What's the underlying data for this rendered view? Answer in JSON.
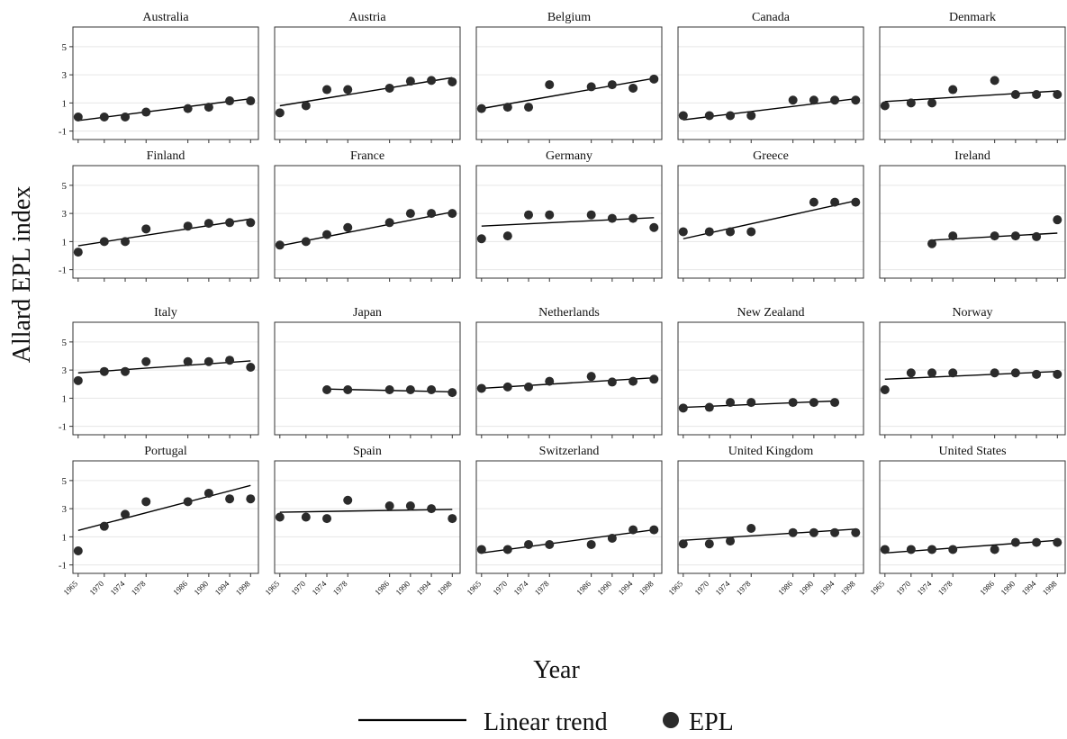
{
  "chart_data": {
    "type": "scatter",
    "xlabel": "Year",
    "ylabel": "Allard EPL index",
    "x_ticks": [
      1965,
      1970,
      1974,
      1978,
      1986,
      1990,
      1994,
      1998
    ],
    "y_ticks": [
      -1,
      1,
      3,
      5
    ],
    "xlim": [
      1964,
      1999.5
    ],
    "ylim": [
      -1.6,
      6.4
    ],
    "grid": true,
    "legend": {
      "position": "bottom",
      "entries": [
        "Linear trend",
        "EPL"
      ]
    },
    "colors": {
      "points": "#2b2b2b",
      "line": "#000000",
      "grid": "#e6e6e6",
      "frame": "#333333"
    },
    "panels": [
      {
        "name": "Australia",
        "years": [
          1965,
          1970,
          1974,
          1978,
          1986,
          1990,
          1994,
          1998
        ],
        "values": [
          0.0,
          0.0,
          0.0,
          0.35,
          0.6,
          0.7,
          1.15,
          1.15
        ],
        "trend": [
          -0.25,
          1.3
        ]
      },
      {
        "name": "Austria",
        "years": [
          1965,
          1970,
          1974,
          1978,
          1986,
          1990,
          1994,
          1998
        ],
        "values": [
          0.3,
          0.8,
          1.95,
          1.95,
          2.05,
          2.55,
          2.6,
          2.5
        ],
        "trend": [
          0.8,
          2.8
        ]
      },
      {
        "name": "Belgium",
        "years": [
          1965,
          1970,
          1974,
          1978,
          1986,
          1990,
          1994,
          1998
        ],
        "values": [
          0.6,
          0.7,
          0.7,
          2.3,
          2.15,
          2.3,
          2.05,
          2.7
        ],
        "trend": [
          0.6,
          2.75
        ]
      },
      {
        "name": "Canada",
        "years": [
          1965,
          1970,
          1974,
          1978,
          1986,
          1990,
          1994,
          1998
        ],
        "values": [
          0.1,
          0.1,
          0.1,
          0.1,
          1.2,
          1.2,
          1.2,
          1.2
        ],
        "trend": [
          -0.2,
          1.3
        ]
      },
      {
        "name": "Denmark",
        "years": [
          1965,
          1970,
          1974,
          1978,
          1986,
          1990,
          1994,
          1998
        ],
        "values": [
          0.8,
          1.0,
          1.0,
          1.95,
          2.6,
          1.6,
          1.6,
          1.6
        ],
        "trend": [
          1.1,
          1.85
        ]
      },
      {
        "name": "Finland",
        "years": [
          1965,
          1970,
          1974,
          1978,
          1986,
          1990,
          1994,
          1998
        ],
        "values": [
          0.25,
          1.0,
          1.0,
          1.9,
          2.1,
          2.3,
          2.35,
          2.35
        ],
        "trend": [
          0.7,
          2.6
        ]
      },
      {
        "name": "France",
        "years": [
          1965,
          1970,
          1974,
          1978,
          1986,
          1990,
          1994,
          1998
        ],
        "values": [
          0.75,
          1.0,
          1.5,
          2.0,
          2.35,
          3.0,
          3.0,
          3.0
        ],
        "trend": [
          0.7,
          3.1
        ]
      },
      {
        "name": "Germany",
        "years": [
          1965,
          1970,
          1974,
          1978,
          1986,
          1990,
          1994,
          1998
        ],
        "values": [
          1.2,
          1.4,
          2.9,
          2.9,
          2.9,
          2.65,
          2.65,
          2.0
        ],
        "trend": [
          2.1,
          2.7
        ]
      },
      {
        "name": "Greece",
        "years": [
          1965,
          1970,
          1974,
          1978,
          1990,
          1994,
          1998
        ],
        "values": [
          1.7,
          1.7,
          1.7,
          1.7,
          3.8,
          3.8,
          3.8
        ],
        "trend": [
          1.2,
          3.9
        ]
      },
      {
        "name": "Ireland",
        "years": [
          1974,
          1978,
          1986,
          1990,
          1994,
          1998
        ],
        "values": [
          0.85,
          1.4,
          1.4,
          1.4,
          1.35,
          2.55
        ],
        "trend": [
          1.1,
          1.6
        ]
      },
      {
        "name": "Italy",
        "years": [
          1965,
          1970,
          1974,
          1978,
          1986,
          1990,
          1994,
          1998
        ],
        "values": [
          2.25,
          2.9,
          2.9,
          3.6,
          3.6,
          3.6,
          3.7,
          3.2
        ],
        "trend": [
          2.8,
          3.65
        ]
      },
      {
        "name": "Japan",
        "years": [
          1974,
          1978,
          1986,
          1990,
          1994,
          1998
        ],
        "values": [
          1.6,
          1.6,
          1.6,
          1.6,
          1.6,
          1.4
        ],
        "trend": [
          1.65,
          1.45
        ]
      },
      {
        "name": "Netherlands",
        "years": [
          1965,
          1970,
          1974,
          1978,
          1986,
          1990,
          1994,
          1998
        ],
        "values": [
          1.7,
          1.8,
          1.8,
          2.2,
          2.55,
          2.15,
          2.2,
          2.35
        ],
        "trend": [
          1.7,
          2.45
        ]
      },
      {
        "name": "New Zealand",
        "years": [
          1965,
          1970,
          1974,
          1978,
          1986,
          1990,
          1994
        ],
        "values": [
          0.3,
          0.35,
          0.7,
          0.7,
          0.7,
          0.7,
          0.7
        ],
        "trend": [
          0.35,
          0.8
        ]
      },
      {
        "name": "Norway",
        "years": [
          1965,
          1970,
          1974,
          1978,
          1986,
          1990,
          1994,
          1998
        ],
        "values": [
          1.6,
          2.8,
          2.8,
          2.8,
          2.8,
          2.8,
          2.7,
          2.7
        ],
        "trend": [
          2.35,
          2.9
        ]
      },
      {
        "name": "Portugal",
        "years": [
          1965,
          1970,
          1974,
          1978,
          1986,
          1990,
          1994,
          1998
        ],
        "values": [
          0.0,
          1.75,
          2.6,
          3.5,
          3.5,
          4.1,
          3.7,
          3.7
        ],
        "trend": [
          1.45,
          4.65
        ]
      },
      {
        "name": "Spain",
        "years": [
          1965,
          1970,
          1974,
          1978,
          1986,
          1990,
          1994,
          1998
        ],
        "values": [
          2.4,
          2.4,
          2.3,
          3.6,
          3.2,
          3.2,
          3.0,
          2.3
        ],
        "trend": [
          2.75,
          2.95
        ]
      },
      {
        "name": "Switzerland",
        "years": [
          1965,
          1970,
          1974,
          1978,
          1986,
          1990,
          1994,
          1998
        ],
        "values": [
          0.1,
          0.1,
          0.45,
          0.45,
          0.45,
          0.9,
          1.5,
          1.5
        ],
        "trend": [
          -0.15,
          1.5
        ]
      },
      {
        "name": "United Kingdom",
        "years": [
          1965,
          1970,
          1974,
          1978,
          1986,
          1990,
          1994,
          1998
        ],
        "values": [
          0.5,
          0.5,
          0.7,
          1.6,
          1.3,
          1.3,
          1.3,
          1.3
        ],
        "trend": [
          0.75,
          1.55
        ]
      },
      {
        "name": "United States",
        "years": [
          1965,
          1970,
          1974,
          1978,
          1986,
          1990,
          1994,
          1998
        ],
        "values": [
          0.1,
          0.1,
          0.1,
          0.1,
          0.1,
          0.6,
          0.6,
          0.6
        ],
        "trend": [
          -0.15,
          0.75
        ]
      }
    ]
  }
}
